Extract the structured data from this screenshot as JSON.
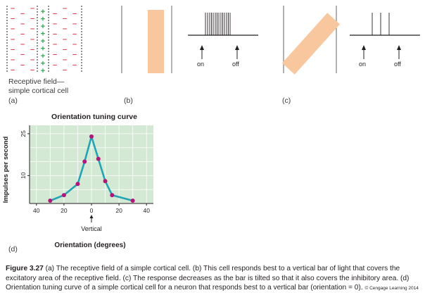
{
  "panel_a": {
    "label_line1": "Receptive field—",
    "label_line2": "simple cortical cell",
    "letter": "(a)",
    "plus": "+",
    "minus": "–"
  },
  "panel_b": {
    "letter": "(b)",
    "on": "on",
    "off": "off"
  },
  "panel_c": {
    "letter": "(c)",
    "on": "on",
    "off": "off"
  },
  "panel_d": {
    "letter": "(d)",
    "chart_data": {
      "type": "line",
      "title": "Orientation tuning curve",
      "xlabel": "Orientation (degrees)",
      "ylabel": "Impulses per second",
      "x_tick_labels": [
        "40",
        "20",
        "0",
        "20",
        "40"
      ],
      "x_tick_values": [
        -40,
        -20,
        0,
        20,
        40
      ],
      "y_tick_labels": [
        "10",
        "25"
      ],
      "y_tick_values": [
        10,
        25
      ],
      "xlim": [
        -45,
        45
      ],
      "ylim": [
        0,
        28
      ],
      "vertical_marker_label": "Vertical",
      "colors": {
        "line": "#1fa5b6",
        "point": "#b5157a",
        "plot_bg": "#d3e9d3",
        "grid": "#ffffff"
      },
      "series": [
        {
          "x": [
            -30,
            -20,
            -10,
            -5,
            0,
            5,
            10,
            15,
            30
          ],
          "y": [
            1,
            3,
            7,
            15,
            24,
            16,
            8,
            3,
            1
          ]
        }
      ]
    }
  },
  "caption": {
    "figure_label": "Figure 3.27",
    "text": " (a) The receptive field of a simple cortical cell. (b) This cell responds best to a vertical bar of light that covers the excitatory area of the receptive field. (c) The response decreases as the bar is tilted so that it also covers the inhibitory area. (d) Orientation tuning curve of a simple cortical cell for a neuron that responds best to a vertical bar (orientation = 0). ",
    "credit": "© Cengage Learning 2014"
  }
}
